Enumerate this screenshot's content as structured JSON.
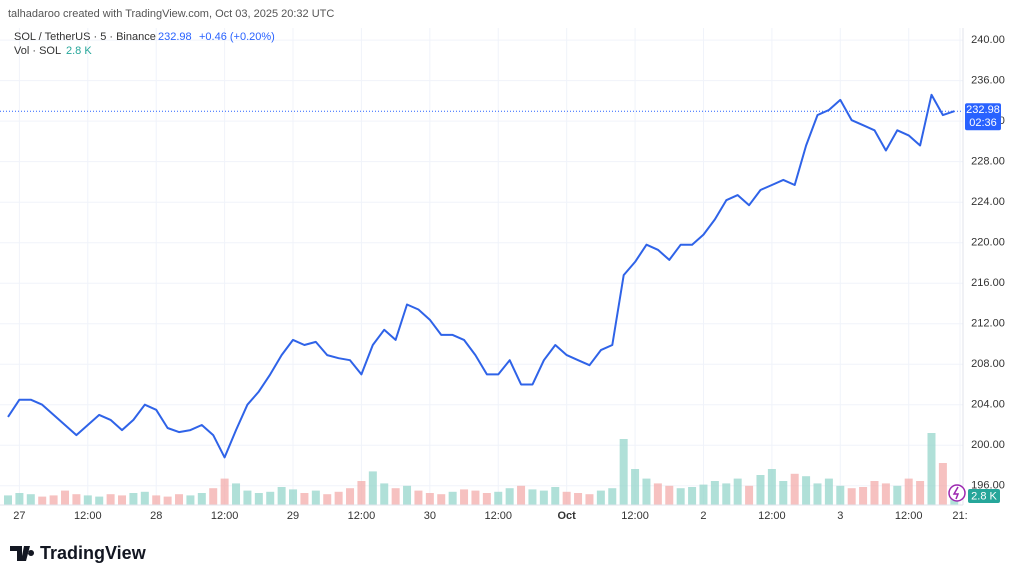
{
  "chart_data": {
    "type": "line",
    "title": "talhadaroo created with TradingView.com, Oct 03, 2025 20:32 UTC",
    "symbol": "SOL / TetherUS · 5 · Binance",
    "change": "+0.46 (+0.20%)",
    "last": {
      "price": 232.98,
      "countdown": "02:36"
    },
    "series": [
      {
        "color": "#2f63e8",
        "values": [
          202.8,
          204.5,
          204.5,
          204.0,
          203.0,
          202.0,
          201.0,
          202.0,
          203.0,
          202.5,
          201.5,
          202.5,
          204.0,
          203.5,
          201.7,
          201.3,
          201.5,
          202.0,
          201.0,
          198.8,
          201.5,
          204.0,
          205.3,
          207.0,
          208.9,
          210.4,
          209.9,
          210.2,
          208.9,
          208.6,
          208.4,
          207.0,
          209.9,
          211.4,
          210.4,
          213.9,
          213.4,
          212.4,
          210.9,
          210.9,
          210.4,
          208.9,
          207.0,
          207.0,
          208.4,
          206.0,
          206.0,
          208.4,
          209.9,
          208.9,
          208.4,
          207.9,
          209.4,
          209.9,
          216.8,
          218.1,
          219.8,
          219.3,
          218.3,
          219.8,
          219.8,
          220.8,
          222.3,
          224.2,
          224.7,
          223.7,
          225.2,
          225.7,
          226.2,
          225.7,
          229.6,
          232.6,
          233.1,
          234.1,
          232.1,
          231.6,
          231.1,
          229.1,
          231.1,
          230.6,
          229.6,
          234.6,
          232.6,
          232.98
        ]
      }
    ],
    "volume": {
      "label": "Vol · SOL",
      "value_label": "2.8 K",
      "up_color": "#8fd3c7",
      "down_color": "#f2a7a5",
      "vlim": [
        0,
        100
      ],
      "values": [
        8,
        10,
        9,
        7,
        8,
        12,
        9,
        8,
        7,
        9,
        8,
        10,
        11,
        8,
        7,
        9,
        8,
        10,
        14,
        22,
        18,
        12,
        10,
        11,
        15,
        13,
        10,
        12,
        9,
        11,
        14,
        20,
        28,
        18,
        14,
        16,
        12,
        10,
        9,
        11,
        13,
        12,
        10,
        11,
        14,
        16,
        13,
        12,
        15,
        11,
        10,
        9,
        12,
        14,
        55,
        30,
        22,
        18,
        16,
        14,
        15,
        17,
        20,
        18,
        22,
        16,
        25,
        30,
        20,
        26,
        24,
        18,
        22,
        16,
        14,
        15,
        20,
        18,
        16,
        22,
        20,
        60,
        35,
        12
      ]
    },
    "xlim": [
      0,
      83.5
    ],
    "xticks": [
      {
        "value": 1,
        "label": "27"
      },
      {
        "value": 7,
        "label": "12:00"
      },
      {
        "value": 13,
        "label": "28"
      },
      {
        "value": 19,
        "label": "12:00"
      },
      {
        "value": 25,
        "label": "29"
      },
      {
        "value": 31,
        "label": "12:00"
      },
      {
        "value": 37,
        "label": "30"
      },
      {
        "value": 43,
        "label": "12:00"
      },
      {
        "value": 49,
        "label": "Oct"
      },
      {
        "value": 55,
        "label": "12:00"
      },
      {
        "value": 61,
        "label": "2"
      },
      {
        "value": 67,
        "label": "12:00"
      },
      {
        "value": 73,
        "label": "3"
      },
      {
        "value": 79,
        "label": "12:00"
      },
      {
        "value": 83.5,
        "label": "21:"
      }
    ],
    "ylim": [
      194.1,
      241.2
    ],
    "yticks": [
      {
        "value": 196,
        "label": "196.00"
      },
      {
        "value": 200,
        "label": "200.00"
      },
      {
        "value": 204,
        "label": "204.00"
      },
      {
        "value": 208,
        "label": "208.00"
      },
      {
        "value": 212,
        "label": "212.00"
      },
      {
        "value": 216,
        "label": "216.00"
      },
      {
        "value": 220,
        "label": "220.00"
      },
      {
        "value": 224,
        "label": "224.00"
      },
      {
        "value": 228,
        "label": "228.00"
      },
      {
        "value": 232,
        "label": "232.00"
      },
      {
        "value": 236,
        "label": "236.00"
      },
      {
        "value": 240,
        "label": "240.00"
      }
    ],
    "grid": true,
    "brand": "TradingView"
  }
}
